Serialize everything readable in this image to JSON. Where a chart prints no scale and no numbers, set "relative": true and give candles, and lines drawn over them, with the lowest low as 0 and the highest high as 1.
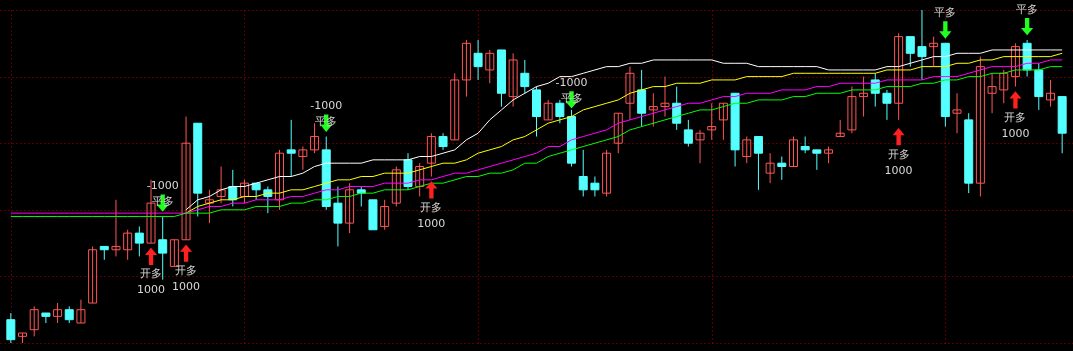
{
  "chart_data": {
    "type": "candlestick",
    "relative": true,
    "grid": true,
    "categories": [
      null,
      null,
      null,
      null,
      null,
      null,
      null,
      null,
      null,
      null,
      null,
      null,
      null,
      null,
      null,
      null,
      null,
      null,
      null,
      null,
      null,
      null,
      null,
      null,
      null,
      null,
      null,
      null,
      null,
      null,
      null,
      null,
      null,
      null,
      null,
      null,
      null,
      null,
      null,
      null,
      null,
      null,
      null,
      null,
      null,
      null,
      null,
      null,
      null,
      null,
      null,
      null,
      null,
      null,
      null,
      null,
      null,
      null,
      null,
      null,
      null,
      null,
      null,
      null,
      null,
      null,
      null,
      null,
      null,
      null,
      null,
      null,
      null,
      null,
      null,
      null,
      null,
      null,
      null,
      null,
      null,
      null,
      null,
      null,
      null,
      null,
      null,
      null,
      null,
      null,
      null
    ],
    "ohlc": [
      [
        0.07,
        0.09,
        0.0,
        0.01
      ],
      [
        0.02,
        0.03,
        0.0,
        0.03
      ],
      [
        0.04,
        0.11,
        0.02,
        0.1
      ],
      [
        0.09,
        0.09,
        0.06,
        0.08
      ],
      [
        0.08,
        0.12,
        0.06,
        0.1
      ],
      [
        0.1,
        0.11,
        0.06,
        0.07
      ],
      [
        0.06,
        0.13,
        0.06,
        0.1
      ],
      [
        0.12,
        0.29,
        0.12,
        0.28
      ],
      [
        0.29,
        0.29,
        0.25,
        0.28
      ],
      [
        0.28,
        0.43,
        0.26,
        0.29
      ],
      [
        0.28,
        0.34,
        0.25,
        0.33
      ],
      [
        0.33,
        0.35,
        0.26,
        0.3
      ],
      [
        0.3,
        0.49,
        0.3,
        0.42
      ],
      [
        0.31,
        0.38,
        0.19,
        0.27
      ],
      [
        0.23,
        0.31,
        0.23,
        0.31
      ],
      [
        0.31,
        0.68,
        0.31,
        0.6
      ],
      [
        0.66,
        0.66,
        0.38,
        0.45
      ],
      [
        0.42,
        0.46,
        0.36,
        0.43
      ],
      [
        0.44,
        0.53,
        0.42,
        0.46
      ],
      [
        0.47,
        0.52,
        0.41,
        0.43
      ],
      [
        0.44,
        0.49,
        0.42,
        0.48
      ],
      [
        0.48,
        0.48,
        0.43,
        0.46
      ],
      [
        0.46,
        0.47,
        0.39,
        0.44
      ],
      [
        0.43,
        0.58,
        0.4,
        0.57
      ],
      [
        0.58,
        0.67,
        0.5,
        0.57
      ],
      [
        0.56,
        0.59,
        0.52,
        0.58
      ],
      [
        0.58,
        0.66,
        0.57,
        0.62
      ],
      [
        0.58,
        0.62,
        0.4,
        0.41
      ],
      [
        0.42,
        0.47,
        0.29,
        0.36
      ],
      [
        0.36,
        0.48,
        0.33,
        0.46
      ],
      [
        0.46,
        0.47,
        0.41,
        0.45
      ],
      [
        0.43,
        0.43,
        0.34,
        0.34
      ],
      [
        0.35,
        0.43,
        0.34,
        0.41
      ],
      [
        0.42,
        0.53,
        0.41,
        0.52
      ],
      [
        0.55,
        0.57,
        0.46,
        0.47
      ],
      [
        0.47,
        0.54,
        0.44,
        0.53
      ],
      [
        0.54,
        0.63,
        0.5,
        0.62
      ],
      [
        0.62,
        0.63,
        0.58,
        0.59
      ],
      [
        0.61,
        0.81,
        0.61,
        0.79
      ],
      [
        0.79,
        0.91,
        0.74,
        0.9
      ],
      [
        0.87,
        0.91,
        0.79,
        0.83
      ],
      [
        0.82,
        0.88,
        0.78,
        0.87
      ],
      [
        0.88,
        0.88,
        0.71,
        0.75
      ],
      [
        0.74,
        0.87,
        0.71,
        0.85
      ],
      [
        0.81,
        0.85,
        0.75,
        0.77
      ],
      [
        0.76,
        0.77,
        0.62,
        0.68
      ],
      [
        0.67,
        0.73,
        0.67,
        0.72
      ],
      [
        0.72,
        0.73,
        0.66,
        0.68
      ],
      [
        0.68,
        0.7,
        0.53,
        0.54
      ],
      [
        0.5,
        0.58,
        0.44,
        0.46
      ],
      [
        0.48,
        0.5,
        0.44,
        0.46
      ],
      [
        0.45,
        0.58,
        0.44,
        0.57
      ],
      [
        0.6,
        0.69,
        0.57,
        0.69
      ],
      [
        0.72,
        0.83,
        0.67,
        0.81
      ],
      [
        0.76,
        0.82,
        0.65,
        0.69
      ],
      [
        0.7,
        0.75,
        0.65,
        0.71
      ],
      [
        0.71,
        0.8,
        0.68,
        0.72
      ],
      [
        0.72,
        0.77,
        0.64,
        0.66
      ],
      [
        0.64,
        0.67,
        0.59,
        0.6
      ],
      [
        0.61,
        0.64,
        0.54,
        0.63
      ],
      [
        0.64,
        0.72,
        0.61,
        0.65
      ],
      [
        0.67,
        0.72,
        0.61,
        0.72
      ],
      [
        0.75,
        0.75,
        0.53,
        0.58
      ],
      [
        0.56,
        0.62,
        0.54,
        0.61
      ],
      [
        0.62,
        0.62,
        0.46,
        0.57
      ],
      [
        0.51,
        0.57,
        0.48,
        0.54
      ],
      [
        0.54,
        0.56,
        0.49,
        0.53
      ],
      [
        0.53,
        0.62,
        0.53,
        0.61
      ],
      [
        0.59,
        0.62,
        0.57,
        0.58
      ],
      [
        0.58,
        0.58,
        0.52,
        0.57
      ],
      [
        0.57,
        0.59,
        0.54,
        0.58
      ],
      [
        0.62,
        0.67,
        0.62,
        0.63
      ],
      [
        0.64,
        0.77,
        0.63,
        0.74
      ],
      [
        0.74,
        0.8,
        0.68,
        0.75
      ],
      [
        0.79,
        0.81,
        0.71,
        0.75
      ],
      [
        0.75,
        0.76,
        0.67,
        0.72
      ],
      [
        0.72,
        0.93,
        0.67,
        0.92
      ],
      [
        0.92,
        0.92,
        0.83,
        0.87
      ],
      [
        0.89,
        1.0,
        0.79,
        0.86
      ],
      [
        0.89,
        0.92,
        0.83,
        0.9
      ],
      [
        0.9,
        0.9,
        0.65,
        0.68
      ],
      [
        0.69,
        0.75,
        0.63,
        0.7
      ],
      [
        0.67,
        0.69,
        0.45,
        0.48
      ],
      [
        0.48,
        0.86,
        0.44,
        0.83
      ],
      [
        0.75,
        0.81,
        0.69,
        0.77
      ],
      [
        0.76,
        0.82,
        0.72,
        0.81
      ],
      [
        0.8,
        0.9,
        0.77,
        0.89
      ],
      [
        0.9,
        0.91,
        0.8,
        0.82
      ],
      [
        0.82,
        0.84,
        0.7,
        0.74
      ],
      [
        0.73,
        0.79,
        0.71,
        0.75
      ],
      [
        0.74,
        0.74,
        0.57,
        0.63
      ]
    ],
    "series": [
      {
        "type": "line",
        "color": "#ffffff",
        "values": [
          null,
          null,
          null,
          null,
          null,
          null,
          null,
          null,
          null,
          null,
          null,
          null,
          null,
          null,
          null,
          0.4,
          0.43,
          0.44,
          0.46,
          0.47,
          0.47,
          0.48,
          0.49,
          0.5,
          0.5,
          0.51,
          0.53,
          0.54,
          0.54,
          0.54,
          0.54,
          0.55,
          0.55,
          0.55,
          0.55,
          0.56,
          0.56,
          0.57,
          0.58,
          0.61,
          0.63,
          0.67,
          0.7,
          0.73,
          0.75,
          0.77,
          0.78,
          0.8,
          0.8,
          0.81,
          0.82,
          0.83,
          0.83,
          0.84,
          0.84,
          0.85,
          0.85,
          0.85,
          0.85,
          0.85,
          0.85,
          0.84,
          0.84,
          0.84,
          0.83,
          0.83,
          0.83,
          0.83,
          0.83,
          0.83,
          0.82,
          0.82,
          0.82,
          0.82,
          0.82,
          0.83,
          0.83,
          0.84,
          0.85,
          0.86,
          0.86,
          0.87,
          0.87,
          0.87,
          0.88,
          0.88,
          0.88,
          0.88,
          0.88,
          0.88,
          0.88
        ]
      },
      {
        "type": "line",
        "color": "#ffff00",
        "values": [
          null,
          null,
          null,
          null,
          null,
          null,
          null,
          null,
          null,
          null,
          null,
          null,
          null,
          null,
          null,
          0.39,
          0.41,
          0.42,
          0.43,
          0.43,
          0.44,
          0.44,
          0.45,
          0.45,
          0.46,
          0.46,
          0.47,
          0.48,
          0.49,
          0.49,
          0.5,
          0.5,
          0.51,
          0.51,
          0.51,
          0.52,
          0.53,
          0.54,
          0.54,
          0.55,
          0.57,
          0.58,
          0.59,
          0.61,
          0.62,
          0.64,
          0.66,
          0.67,
          0.68,
          0.7,
          0.71,
          0.72,
          0.73,
          0.75,
          0.76,
          0.77,
          0.77,
          0.78,
          0.78,
          0.78,
          0.79,
          0.79,
          0.79,
          0.8,
          0.8,
          0.8,
          0.8,
          0.81,
          0.81,
          0.81,
          0.81,
          0.81,
          0.81,
          0.81,
          0.81,
          0.82,
          0.82,
          0.82,
          0.83,
          0.83,
          0.83,
          0.84,
          0.84,
          0.85,
          0.85,
          0.86,
          0.86,
          0.86,
          0.86,
          0.86,
          0.87
        ]
      },
      {
        "type": "line",
        "color": "#ff00ff",
        "values": [
          0.39,
          0.39,
          0.39,
          0.39,
          0.39,
          0.39,
          0.39,
          0.39,
          0.39,
          0.39,
          0.39,
          0.39,
          0.39,
          0.39,
          0.39,
          0.39,
          0.4,
          0.41,
          0.41,
          0.42,
          0.42,
          0.43,
          0.43,
          0.43,
          0.44,
          0.44,
          0.45,
          0.46,
          0.46,
          0.47,
          0.47,
          0.47,
          0.48,
          0.48,
          0.48,
          0.49,
          0.49,
          0.5,
          0.51,
          0.51,
          0.52,
          0.53,
          0.54,
          0.55,
          0.56,
          0.57,
          0.59,
          0.59,
          0.61,
          0.62,
          0.63,
          0.64,
          0.66,
          0.67,
          0.68,
          0.69,
          0.7,
          0.71,
          0.72,
          0.72,
          0.73,
          0.74,
          0.74,
          0.75,
          0.75,
          0.75,
          0.76,
          0.76,
          0.76,
          0.77,
          0.77,
          0.78,
          0.78,
          0.78,
          0.78,
          0.79,
          0.79,
          0.79,
          0.79,
          0.8,
          0.8,
          0.8,
          0.81,
          0.82,
          0.83,
          0.83,
          0.83,
          0.84,
          0.84,
          0.85,
          0.85
        ]
      },
      {
        "type": "line",
        "color": "#00ff00",
        "values": [
          0.38,
          0.38,
          0.38,
          0.38,
          0.38,
          0.38,
          0.38,
          0.38,
          0.38,
          0.38,
          0.38,
          0.38,
          0.38,
          0.38,
          0.38,
          0.39,
          0.39,
          0.39,
          0.4,
          0.4,
          0.4,
          0.41,
          0.41,
          0.41,
          0.42,
          0.42,
          0.43,
          0.43,
          0.44,
          0.44,
          0.45,
          0.45,
          0.46,
          0.46,
          0.46,
          0.47,
          0.48,
          0.48,
          0.49,
          0.5,
          0.5,
          0.51,
          0.51,
          0.52,
          0.54,
          0.54,
          0.56,
          0.57,
          0.58,
          0.59,
          0.6,
          0.61,
          0.62,
          0.64,
          0.65,
          0.66,
          0.67,
          0.68,
          0.69,
          0.7,
          0.7,
          0.71,
          0.72,
          0.72,
          0.73,
          0.73,
          0.73,
          0.74,
          0.74,
          0.75,
          0.75,
          0.75,
          0.76,
          0.76,
          0.76,
          0.77,
          0.77,
          0.77,
          0.78,
          0.78,
          0.79,
          0.79,
          0.8,
          0.8,
          0.81,
          0.81,
          0.82,
          0.82,
          0.82,
          0.83,
          0.83
        ]
      },
      {
        "type": "scatter",
        "color": "#ff2020",
        "values": [
          null,
          null,
          null,
          null,
          null,
          null,
          null,
          null,
          null,
          null,
          null,
          null,
          0.26,
          null,
          null,
          0.27,
          null,
          null,
          null,
          null,
          null,
          null,
          null,
          null,
          null,
          null,
          null,
          null,
          null,
          null,
          null,
          null,
          null,
          null,
          null,
          null,
          0.46,
          null,
          null,
          null,
          null,
          null,
          null,
          null,
          null,
          null,
          null,
          null,
          null,
          null,
          null,
          null,
          null,
          null,
          null,
          null,
          null,
          null,
          null,
          null,
          null,
          null,
          null,
          null,
          null,
          null,
          null,
          null,
          null,
          null,
          null,
          null,
          null,
          null,
          null,
          null,
          0.62,
          null,
          null,
          null,
          null,
          null,
          null,
          null,
          null,
          null,
          0.73,
          null,
          null,
          null,
          null
        ]
      },
      {
        "type": "scatter",
        "color": "#20ff20",
        "values": [
          null,
          null,
          null,
          null,
          null,
          null,
          null,
          null,
          null,
          null,
          null,
          null,
          null,
          0.42,
          null,
          null,
          null,
          null,
          null,
          null,
          null,
          null,
          null,
          null,
          null,
          null,
          null,
          0.66,
          null,
          null,
          null,
          null,
          null,
          null,
          null,
          null,
          null,
          null,
          null,
          null,
          null,
          null,
          null,
          null,
          null,
          null,
          null,
          null,
          0.73,
          null,
          null,
          null,
          null,
          null,
          null,
          null,
          null,
          null,
          null,
          null,
          null,
          null,
          null,
          null,
          null,
          null,
          null,
          null,
          null,
          null,
          null,
          null,
          null,
          null,
          null,
          null,
          null,
          null,
          null,
          null,
          0.94,
          null,
          null,
          null,
          null,
          null,
          null,
          0.95,
          null,
          null,
          null
        ]
      }
    ],
    "annotations": [
      {
        "text": "开多\n1000",
        "y": 0.26
      },
      {
        "text": "-1000\n平多",
        "y": 0.42
      },
      {
        "text": "开多\n1000",
        "y": 0.27
      },
      {
        "text": "-1000\n平多",
        "y": 0.66
      },
      {
        "text": "开多\n1000",
        "y": 0.46
      },
      {
        "text": "-1000\n平多",
        "y": 0.73
      },
      {
        "text": "开多\n1000",
        "y": 0.62
      },
      {
        "text": "平多",
        "y": 0.94
      },
      {
        "text": "开多\n1000",
        "y": 0.73
      },
      {
        "text": "平多",
        "y": 0.95
      }
    ]
  }
}
